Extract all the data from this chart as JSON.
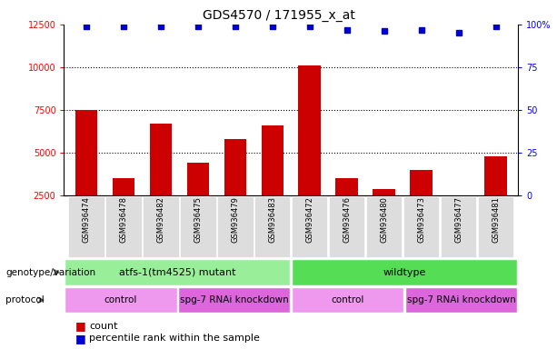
{
  "title": "GDS4570 / 171955_x_at",
  "samples": [
    "GSM936474",
    "GSM936478",
    "GSM936482",
    "GSM936475",
    "GSM936479",
    "GSM936483",
    "GSM936472",
    "GSM936476",
    "GSM936480",
    "GSM936473",
    "GSM936477",
    "GSM936481"
  ],
  "counts": [
    7500,
    3500,
    6700,
    4400,
    5800,
    6600,
    10100,
    3500,
    2900,
    4000,
    2300,
    4800
  ],
  "percentile_ranks": [
    99,
    99,
    99,
    99,
    99,
    99,
    99,
    97,
    96,
    97,
    95,
    99
  ],
  "bar_color": "#cc0000",
  "dot_color": "#0000cc",
  "ylim_left": [
    2500,
    12500
  ],
  "ylim_right": [
    0,
    100
  ],
  "yticks_left": [
    2500,
    5000,
    7500,
    10000,
    12500
  ],
  "yticks_right": [
    0,
    25,
    50,
    75,
    100
  ],
  "ytick_labels_right": [
    "0",
    "25",
    "50",
    "75",
    "100%"
  ],
  "grid_values": [
    5000,
    7500,
    10000
  ],
  "genotype_groups": [
    {
      "label": "atfs-1(tm4525) mutant",
      "color": "#99ee99",
      "start": 0,
      "end": 6
    },
    {
      "label": "wildtype",
      "color": "#55dd55",
      "start": 6,
      "end": 12
    }
  ],
  "protocol_groups": [
    {
      "label": "control",
      "color": "#ee99ee",
      "start": 0,
      "end": 3
    },
    {
      "label": "spg-7 RNAi knockdown",
      "color": "#dd66dd",
      "start": 3,
      "end": 6
    },
    {
      "label": "control",
      "color": "#ee99ee",
      "start": 6,
      "end": 9
    },
    {
      "label": "spg-7 RNAi knockdown",
      "color": "#dd66dd",
      "start": 9,
      "end": 12
    }
  ],
  "legend_items": [
    {
      "label": "count",
      "color": "#cc0000"
    },
    {
      "label": "percentile rank within the sample",
      "color": "#0000cc"
    }
  ],
  "background_color": "#ffffff",
  "row_label_genotype": "genotype/variation",
  "row_label_protocol": "protocol",
  "xticklabel_bg": "#dddddd",
  "arrow_color": "#555555"
}
